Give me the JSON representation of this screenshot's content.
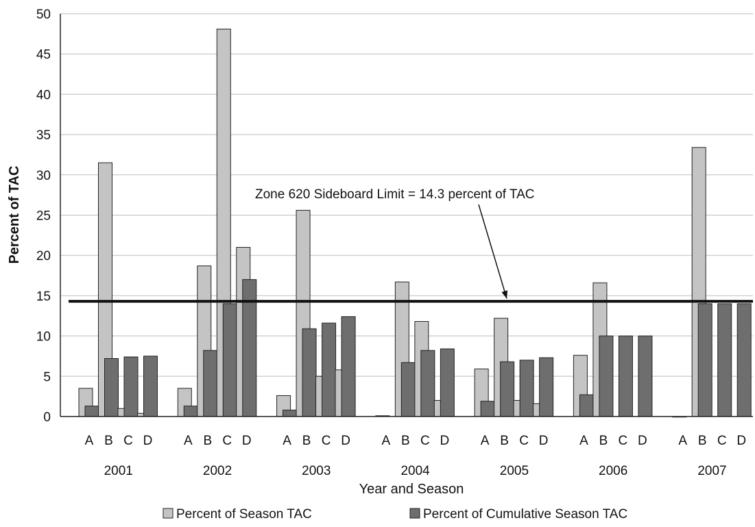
{
  "chart_data": {
    "type": "bar",
    "xlabel": "Year and Season",
    "ylabel": "Percent of TAC",
    "ylim": [
      0,
      50
    ],
    "yticks": [
      0,
      5,
      10,
      15,
      20,
      25,
      30,
      35,
      40,
      45,
      50
    ],
    "grid": true,
    "legend_position": "bottom",
    "years": [
      "2001",
      "2002",
      "2003",
      "2004",
      "2005",
      "2006",
      "2007"
    ],
    "seasons": [
      "A",
      "B",
      "C",
      "D"
    ],
    "series": [
      {
        "name": "Percent of Season TAC",
        "color": "#c4c4c4",
        "values": [
          3.5,
          31.5,
          1.0,
          0.4,
          3.5,
          18.7,
          48.1,
          21.0,
          2.6,
          25.6,
          5.0,
          5.8,
          0.1,
          16.7,
          11.8,
          2.0,
          5.9,
          12.2,
          2.0,
          1.6,
          7.6,
          16.6,
          null,
          null,
          0.0,
          33.4,
          null,
          null
        ]
      },
      {
        "name": "Percent of Cumulative Season TAC",
        "color": "#6e6e6e",
        "values": [
          1.3,
          7.2,
          7.4,
          7.5,
          1.3,
          8.2,
          14.0,
          17.0,
          0.8,
          10.9,
          11.6,
          12.4,
          null,
          6.7,
          8.2,
          8.4,
          1.9,
          6.8,
          7.0,
          7.3,
          2.7,
          10.0,
          10.0,
          10.0,
          null,
          14.0,
          14.0,
          14.0
        ]
      }
    ],
    "reference_line": {
      "value": 14.3
    },
    "annotation": "Zone 620 Sideboard Limit = 14.3 percent of TAC"
  }
}
